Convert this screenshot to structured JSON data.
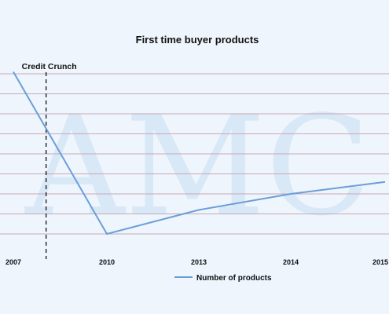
{
  "chart_data": {
    "type": "line",
    "title": "First time buyer products",
    "watermark": "AMC",
    "categories": [
      "2007",
      "2010",
      "2013",
      "2014",
      "2015"
    ],
    "series": [
      {
        "name": "Number of products",
        "values": [
          8.1,
          0,
          1.2,
          2.0,
          2.6
        ],
        "color": "#6a9fd8"
      }
    ],
    "ylim": [
      0,
      8.7
    ],
    "y_gridlines": [
      0,
      1,
      2,
      3,
      4,
      5,
      6,
      7,
      8
    ],
    "grid": true,
    "annotation": {
      "label": "Credit Crunch",
      "position_between": [
        "2007",
        "2010"
      ],
      "fraction": 0.35,
      "style": "dashed"
    },
    "legend": {
      "placement": "bottom"
    },
    "colors": {
      "background": "#eef5fc",
      "gridline": "#c8a9b7",
      "line": "#6a9fd8",
      "watermark": "#d3e4f4"
    }
  }
}
